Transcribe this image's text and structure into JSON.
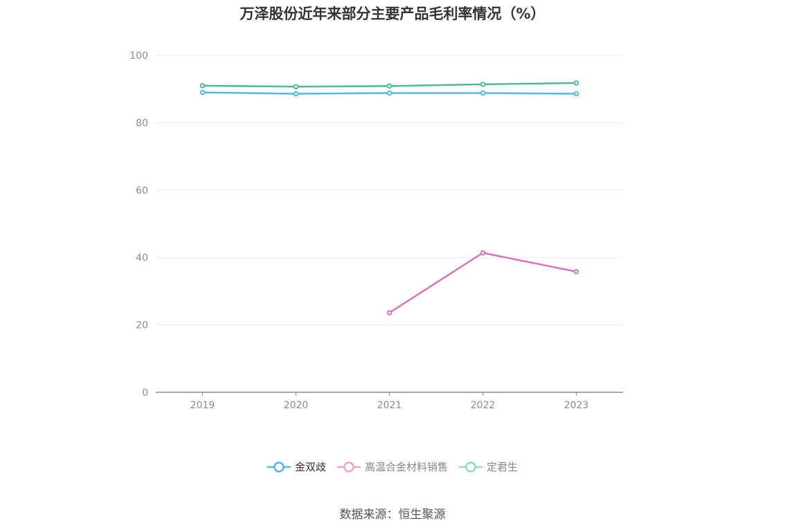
{
  "chart_data": {
    "type": "line",
    "title": "万泽股份近年来部分主要产品毛利率情况（%）",
    "x": [
      "2019",
      "2020",
      "2021",
      "2022",
      "2023"
    ],
    "ylim": [
      0,
      100
    ],
    "yticks": [
      0,
      20,
      40,
      60,
      80,
      100
    ],
    "grid": true,
    "legend_position": "bottom",
    "series": [
      {
        "name": "金双歧",
        "color": "#4db8ec",
        "values": [
          89.0,
          88.6,
          88.8,
          88.8,
          88.6
        ]
      },
      {
        "name": "高温合金材料销售",
        "color": "#dd72b6",
        "values": [
          null,
          null,
          23.6,
          41.4,
          35.8
        ]
      },
      {
        "name": "定君生",
        "color": "#52b893",
        "values": [
          91.0,
          90.7,
          90.9,
          91.4,
          91.8
        ]
      }
    ],
    "legend_colors": [
      "#4db8ec",
      "#f0a2cf",
      "#8fdac4"
    ]
  },
  "source": "数据来源：恒生聚源"
}
